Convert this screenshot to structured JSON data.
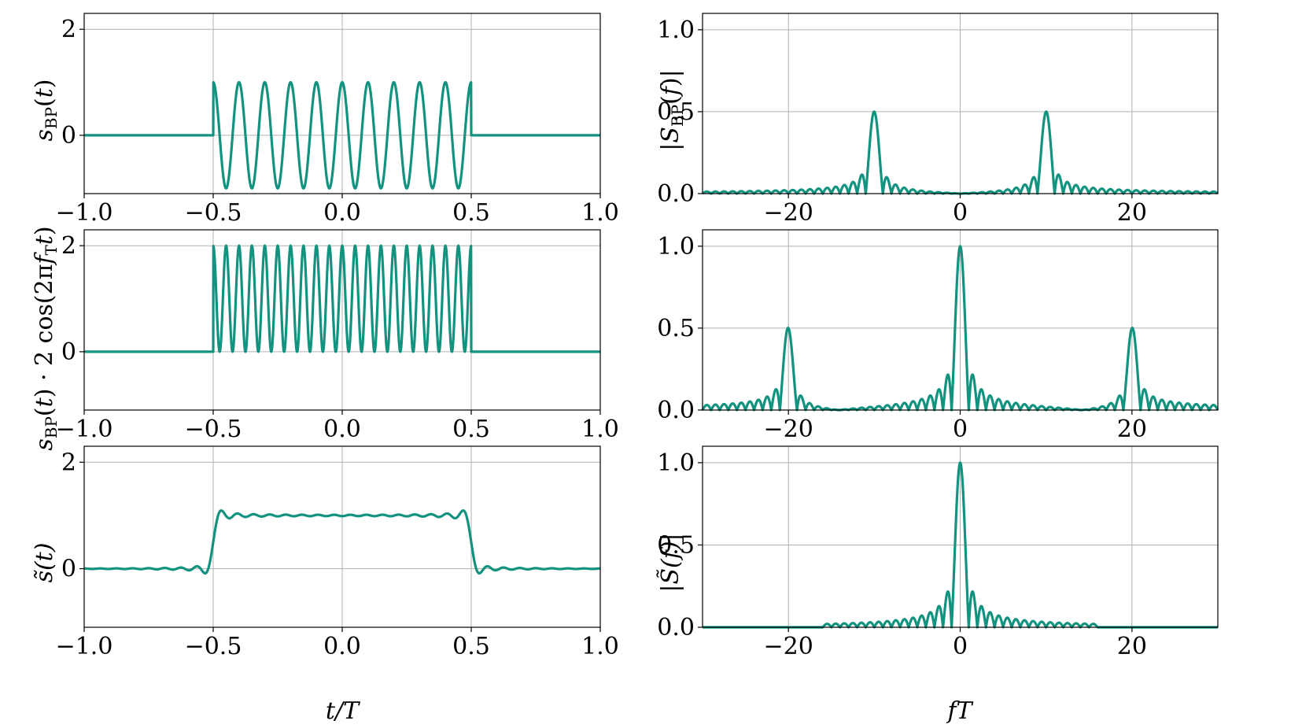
{
  "colors": {
    "line": "#11937f",
    "grid": "#b0b0b0",
    "frame": "#000000"
  },
  "chart_data": [
    {
      "type": "line",
      "panel": "time-1",
      "ylabel": "s_BP(t)",
      "xlim": [
        -1.0,
        1.0
      ],
      "ylim": [
        -1.1,
        2.3
      ],
      "xticks": [
        "−1.0",
        "−0.5",
        "0.0",
        "0.5",
        "1.0"
      ],
      "yticks": [
        "0",
        "2"
      ],
      "grid": true,
      "series": [
        {
          "signal": "cos(2π·10·t) for |t|<0.5, else 0"
        }
      ]
    },
    {
      "type": "line",
      "panel": "freq-1",
      "ylabel": "|S_BP(f)|",
      "xlim": [
        -30,
        30
      ],
      "ylim": [
        0,
        1.1
      ],
      "xticks": [
        "−20",
        "0",
        "20"
      ],
      "yticks": [
        "0.0",
        "0.5",
        "1.0"
      ],
      "grid": true,
      "series": [
        {
          "peaks": [
            {
              "f": -10,
              "value": 0.5
            },
            {
              "f": 10,
              "value": 0.5
            }
          ]
        }
      ]
    },
    {
      "type": "line",
      "panel": "time-2",
      "ylabel": "s_BP(t) · 2 cos(2π f_T t)",
      "xlim": [
        -1.0,
        1.0
      ],
      "ylim": [
        -1.1,
        2.3
      ],
      "xticks": [
        "−1.0",
        "−0.5",
        "0.0",
        "0.5",
        "1.0"
      ],
      "yticks": [
        "0",
        "2"
      ],
      "grid": true,
      "series": [
        {
          "signal": "2cos²(2π·10·t) for |t|<0.5, else 0"
        }
      ]
    },
    {
      "type": "line",
      "panel": "freq-2",
      "ylabel": "",
      "xlim": [
        -30,
        30
      ],
      "ylim": [
        0,
        1.1
      ],
      "xticks": [
        "−20",
        "0",
        "20"
      ],
      "yticks": [
        "0.0",
        "0.5",
        "1.0"
      ],
      "grid": true,
      "series": [
        {
          "peaks": [
            {
              "f": -20,
              "value": 0.5
            },
            {
              "f": 0,
              "value": 1.0
            },
            {
              "f": 20,
              "value": 0.5
            }
          ]
        }
      ]
    },
    {
      "type": "line",
      "panel": "time-3",
      "ylabel": "s̃(t)",
      "xlabel": "t/T",
      "xlim": [
        -1.0,
        1.0
      ],
      "ylim": [
        -1.1,
        2.3
      ],
      "xticks": [
        "−1.0",
        "−0.5",
        "0.0",
        "0.5",
        "1.0"
      ],
      "yticks": [
        "0",
        "2"
      ],
      "grid": true,
      "series": [
        {
          "signal": "lowpass-filtered rectangle of height 1 for |t|<0.5 (ringing at edges)"
        }
      ]
    },
    {
      "type": "line",
      "panel": "freq-3",
      "ylabel": "|S̃(f)|",
      "xlabel": "fT",
      "xlim": [
        -30,
        30
      ],
      "ylim": [
        0,
        1.1
      ],
      "xticks": [
        "−20",
        "0",
        "20"
      ],
      "yticks": [
        "0.0",
        "0.5",
        "1.0"
      ],
      "grid": true,
      "series": [
        {
          "peaks": [
            {
              "f": 0,
              "value": 1.0
            }
          ],
          "cutoff": 16
        }
      ]
    }
  ]
}
